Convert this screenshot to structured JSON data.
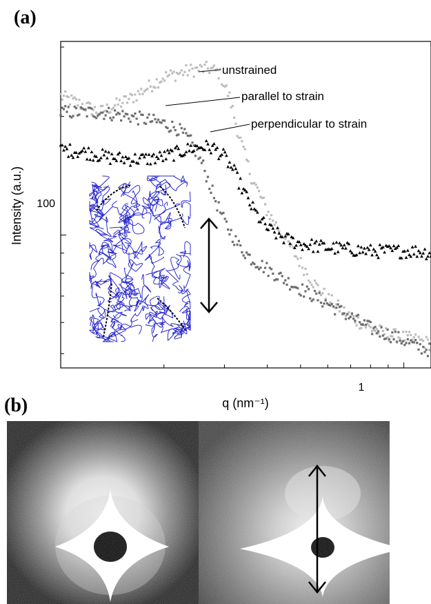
{
  "panel_a_label": "(a)",
  "panel_b_label": "(b)",
  "chart_data": {
    "type": "scatter",
    "xlabel": "q (nm⁻¹)",
    "ylabel": "Intensity (a.u.)",
    "xscale": "log",
    "yscale": "log",
    "xlim": [
      0.1,
      1.2
    ],
    "ylim": [
      46,
      310
    ],
    "x_tick_labels": [
      {
        "value": 1,
        "label": "1"
      }
    ],
    "y_tick_labels": [
      {
        "value": 100,
        "label": "100"
      }
    ],
    "grid": false,
    "annotations": [
      {
        "text": "unstrained",
        "series": 0
      },
      {
        "text": "parallel to strain",
        "series": 1
      },
      {
        "text": "perpendicular to strain",
        "series": 2
      }
    ],
    "series": [
      {
        "color": "#bdbdbd",
        "marker": "square",
        "x": [
          0.1,
          0.13,
          0.16,
          0.2,
          0.24,
          0.27,
          0.29,
          0.31,
          0.33,
          0.36,
          0.4,
          0.45,
          0.5,
          0.55,
          0.6,
          0.7,
          0.8,
          0.9,
          1.0,
          1.1,
          1.2
        ],
        "y": [
          225,
          205,
          222,
          252,
          262,
          265,
          258,
          225,
          180,
          140,
          115,
          98,
          85,
          75,
          69,
          62,
          58,
          56,
          55,
          54,
          53
        ]
      },
      {
        "color": "#6e6e6e",
        "marker": "square",
        "x": [
          0.1,
          0.13,
          0.16,
          0.2,
          0.22,
          0.24,
          0.26,
          0.28,
          0.3,
          0.33,
          0.36,
          0.4,
          0.45,
          0.5,
          0.6,
          0.7,
          0.8,
          0.9,
          1.0,
          1.1,
          1.2
        ],
        "y": [
          205,
          205,
          200,
          192,
          186,
          172,
          150,
          125,
          108,
          94,
          87,
          82,
          77,
          73,
          67,
          62,
          58,
          56,
          54,
          52,
          51
        ]
      },
      {
        "color": "#000000",
        "marker": "triangle",
        "x": [
          0.1,
          0.12,
          0.14,
          0.16,
          0.18,
          0.2,
          0.22,
          0.24,
          0.26,
          0.28,
          0.3,
          0.32,
          0.34,
          0.36,
          0.38,
          0.4,
          0.45,
          0.5,
          0.6,
          0.7,
          0.8,
          0.9,
          1.0,
          1.1,
          1.2
        ],
        "y": [
          165,
          162,
          157,
          156,
          156,
          158,
          162,
          166,
          168,
          166,
          158,
          145,
          130,
          118,
          110,
          104,
          98,
          95,
          93,
          92,
          91,
          91,
          91,
          91,
          90
        ]
      }
    ]
  }
}
